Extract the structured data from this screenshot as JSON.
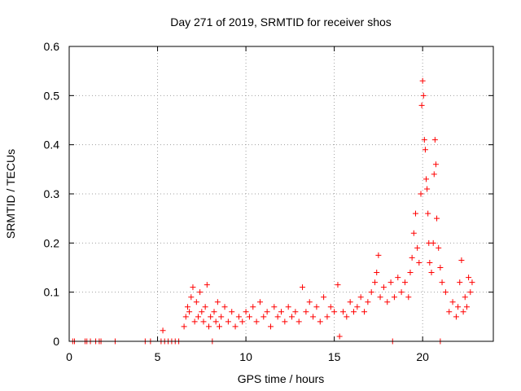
{
  "chart_data": {
    "type": "scatter",
    "title": "Day 271 of 2019, SRMTID for receiver shos",
    "xlabel": "GPS time / hours",
    "ylabel": "SRMTID / TECUs",
    "xlim": [
      0,
      24
    ],
    "ylim": [
      0,
      0.6
    ],
    "xticks": [
      0,
      5,
      10,
      15,
      20
    ],
    "yticks": [
      0,
      0.1,
      0.2,
      0.3,
      0.4,
      0.5,
      0.6
    ],
    "xtick_labels": [
      "0",
      "5",
      "10",
      "15",
      "20"
    ],
    "ytick_labels": [
      "0",
      "0.1",
      "0.2",
      "0.3",
      "0.4",
      "0.5",
      "0.6"
    ],
    "grid": true,
    "marker": "+",
    "color": "#ff0000",
    "series": [
      {
        "name": "SRMTID",
        "points": [
          [
            0.2,
            0.0
          ],
          [
            0.3,
            0.0
          ],
          [
            0.9,
            0.0
          ],
          [
            1.0,
            0.0
          ],
          [
            1.2,
            0.0
          ],
          [
            1.5,
            0.0
          ],
          [
            1.7,
            0.0
          ],
          [
            1.8,
            0.0
          ],
          [
            2.6,
            0.0
          ],
          [
            4.3,
            0.0
          ],
          [
            4.6,
            0.0
          ],
          [
            5.2,
            0.0
          ],
          [
            5.4,
            0.0
          ],
          [
            5.6,
            0.0
          ],
          [
            5.8,
            0.0
          ],
          [
            6.0,
            0.0
          ],
          [
            6.2,
            0.0
          ],
          [
            8.1,
            0.0
          ],
          [
            18.3,
            0.0
          ],
          [
            21.0,
            0.0
          ],
          [
            5.3,
            0.022
          ],
          [
            6.5,
            0.03
          ],
          [
            6.6,
            0.05
          ],
          [
            6.7,
            0.07
          ],
          [
            6.8,
            0.06
          ],
          [
            6.9,
            0.09
          ],
          [
            7.0,
            0.11
          ],
          [
            7.1,
            0.04
          ],
          [
            7.2,
            0.08
          ],
          [
            7.3,
            0.05
          ],
          [
            7.4,
            0.1
          ],
          [
            7.5,
            0.06
          ],
          [
            7.6,
            0.04
          ],
          [
            7.7,
            0.07
          ],
          [
            7.8,
            0.115
          ],
          [
            7.9,
            0.03
          ],
          [
            8.0,
            0.05
          ],
          [
            8.2,
            0.06
          ],
          [
            8.3,
            0.04
          ],
          [
            8.4,
            0.08
          ],
          [
            8.5,
            0.03
          ],
          [
            8.6,
            0.05
          ],
          [
            8.8,
            0.07
          ],
          [
            9.0,
            0.04
          ],
          [
            9.2,
            0.06
          ],
          [
            9.4,
            0.03
          ],
          [
            9.6,
            0.05
          ],
          [
            9.8,
            0.04
          ],
          [
            10.0,
            0.06
          ],
          [
            10.2,
            0.05
          ],
          [
            10.4,
            0.07
          ],
          [
            10.6,
            0.04
          ],
          [
            10.8,
            0.08
          ],
          [
            11.0,
            0.05
          ],
          [
            11.2,
            0.06
          ],
          [
            11.4,
            0.03
          ],
          [
            11.6,
            0.07
          ],
          [
            11.8,
            0.05
          ],
          [
            12.0,
            0.06
          ],
          [
            12.2,
            0.04
          ],
          [
            12.4,
            0.07
          ],
          [
            12.6,
            0.05
          ],
          [
            12.8,
            0.06
          ],
          [
            13.0,
            0.04
          ],
          [
            13.2,
            0.11
          ],
          [
            13.4,
            0.06
          ],
          [
            13.6,
            0.08
          ],
          [
            13.8,
            0.05
          ],
          [
            14.0,
            0.07
          ],
          [
            14.2,
            0.04
          ],
          [
            14.4,
            0.09
          ],
          [
            14.6,
            0.05
          ],
          [
            14.8,
            0.07
          ],
          [
            15.0,
            0.06
          ],
          [
            15.2,
            0.115
          ],
          [
            15.3,
            0.01
          ],
          [
            15.5,
            0.06
          ],
          [
            15.7,
            0.05
          ],
          [
            15.9,
            0.08
          ],
          [
            16.1,
            0.06
          ],
          [
            16.3,
            0.07
          ],
          [
            16.5,
            0.09
          ],
          [
            16.7,
            0.06
          ],
          [
            16.9,
            0.08
          ],
          [
            17.1,
            0.1
          ],
          [
            17.3,
            0.12
          ],
          [
            17.4,
            0.14
          ],
          [
            17.5,
            0.175
          ],
          [
            17.6,
            0.09
          ],
          [
            17.8,
            0.11
          ],
          [
            18.0,
            0.08
          ],
          [
            18.2,
            0.12
          ],
          [
            18.4,
            0.09
          ],
          [
            18.6,
            0.13
          ],
          [
            18.8,
            0.1
          ],
          [
            19.0,
            0.12
          ],
          [
            19.2,
            0.09
          ],
          [
            19.3,
            0.14
          ],
          [
            19.4,
            0.17
          ],
          [
            19.5,
            0.22
          ],
          [
            19.6,
            0.26
          ],
          [
            19.7,
            0.19
          ],
          [
            19.8,
            0.16
          ],
          [
            19.9,
            0.3
          ],
          [
            19.95,
            0.48
          ],
          [
            20.0,
            0.53
          ],
          [
            20.05,
            0.5
          ],
          [
            20.1,
            0.41
          ],
          [
            20.15,
            0.39
          ],
          [
            20.2,
            0.33
          ],
          [
            20.25,
            0.31
          ],
          [
            20.3,
            0.26
          ],
          [
            20.35,
            0.2
          ],
          [
            20.4,
            0.16
          ],
          [
            20.5,
            0.14
          ],
          [
            20.6,
            0.2
          ],
          [
            20.65,
            0.34
          ],
          [
            20.7,
            0.41
          ],
          [
            20.75,
            0.36
          ],
          [
            20.8,
            0.25
          ],
          [
            20.9,
            0.19
          ],
          [
            21.0,
            0.15
          ],
          [
            21.1,
            0.12
          ],
          [
            21.3,
            0.1
          ],
          [
            21.5,
            0.06
          ],
          [
            21.7,
            0.08
          ],
          [
            21.9,
            0.05
          ],
          [
            22.0,
            0.07
          ],
          [
            22.1,
            0.12
          ],
          [
            22.2,
            0.165
          ],
          [
            22.3,
            0.06
          ],
          [
            22.4,
            0.09
          ],
          [
            22.5,
            0.07
          ],
          [
            22.6,
            0.13
          ],
          [
            22.7,
            0.1
          ],
          [
            22.8,
            0.12
          ]
        ]
      }
    ]
  }
}
